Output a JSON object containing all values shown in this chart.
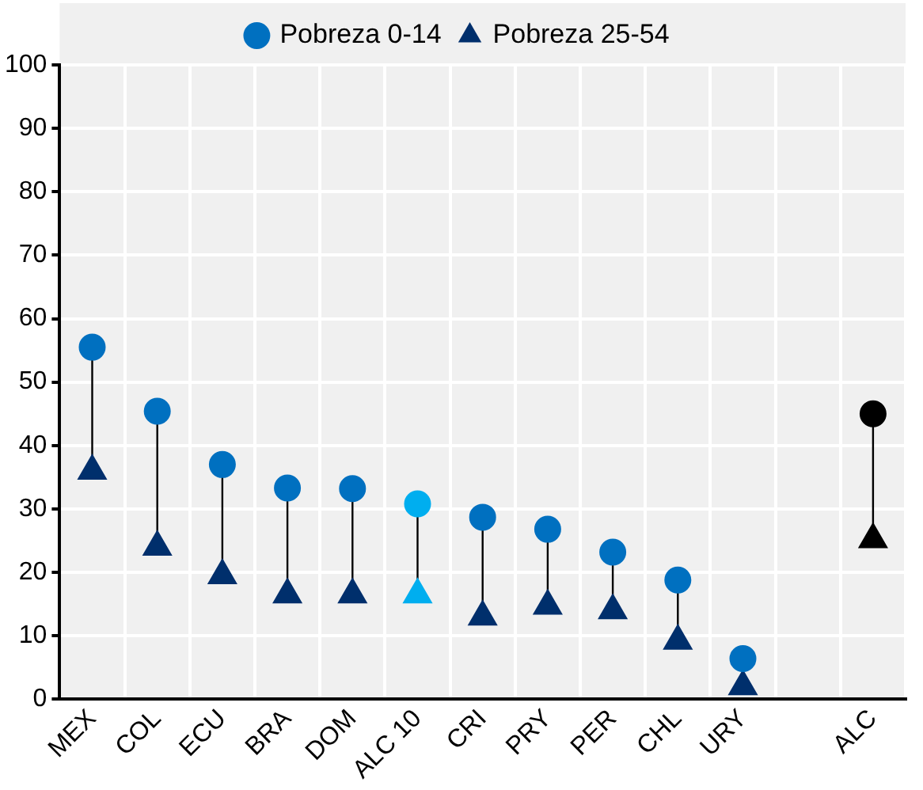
{
  "chart_data": {
    "type": "scatter",
    "categories": [
      "MEX",
      "COL",
      "ECU",
      "BRA",
      "DOM",
      "ALC 10",
      "CRI",
      "PRY",
      "PER",
      "CHL",
      "URY",
      null,
      "ALC"
    ],
    "series": [
      {
        "name": "Pobreza 0-14",
        "color": "#0070c0",
        "marker": "circle",
        "colors": [
          "#0070c0",
          "#0070c0",
          "#0070c0",
          "#0070c0",
          "#0070c0",
          "#00aeef",
          "#0070c0",
          "#0070c0",
          "#0070c0",
          "#0070c0",
          "#0070c0",
          "#0070c0",
          "#000000"
        ],
        "values": [
          55.5,
          45.4,
          37,
          33.3,
          33.2,
          30.8,
          28.7,
          26.8,
          23.2,
          18.8,
          6.4,
          null,
          45
        ]
      },
      {
        "name": "Pobreza 25-54",
        "color": "#002f6c",
        "marker": "triangle",
        "colors": [
          "#002f6c",
          "#002f6c",
          "#002f6c",
          "#002f6c",
          "#002f6c",
          "#00aeef",
          "#002f6c",
          "#002f6c",
          "#002f6c",
          "#002f6c",
          "#002f6c",
          "#002f6c",
          "#000000"
        ],
        "values": [
          36,
          24,
          19.5,
          16.5,
          16.5,
          16.5,
          13,
          14.7,
          14,
          9.2,
          2,
          null,
          25.2
        ]
      }
    ],
    "ylim": [
      0,
      100
    ],
    "yticks": [
      0,
      10,
      20,
      30,
      40,
      50,
      60,
      70,
      80,
      90,
      100
    ],
    "grid": true,
    "legend": "top"
  }
}
